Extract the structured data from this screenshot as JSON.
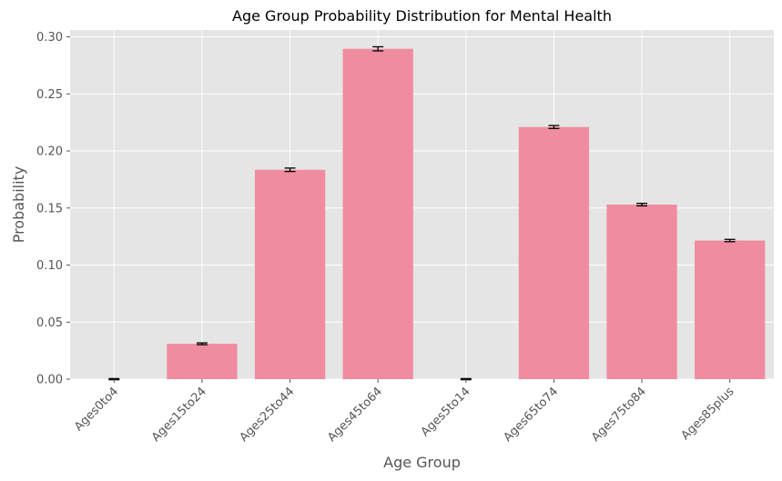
{
  "chart_data": {
    "type": "bar",
    "title": "Age Group Probability Distribution for Mental Health",
    "xlabel": "Age Group",
    "ylabel": "Probability",
    "categories": [
      "Ages0to4",
      "Ages15to24",
      "Ages25to44",
      "Ages45to64",
      "Ages5to14",
      "Ages65to74",
      "Ages75to84",
      "Ages85plus"
    ],
    "values": [
      0.0,
      0.031,
      0.1835,
      0.2895,
      0.0,
      0.221,
      0.153,
      0.1215
    ],
    "errors": [
      0.0005,
      0.0008,
      0.0015,
      0.0018,
      0.0005,
      0.0013,
      0.0011,
      0.001
    ],
    "ylim": [
      0,
      0.3
    ],
    "yticks": [
      0.0,
      0.05,
      0.1,
      0.15,
      0.2,
      0.25,
      0.3
    ],
    "ytick_labels": [
      "0.00",
      "0.05",
      "0.10",
      "0.15",
      "0.20",
      "0.25",
      "0.30"
    ],
    "grid": true,
    "colors": {
      "bar": "#f08ca0",
      "plot_background": "#e5e5e5",
      "grid": "#ffffff",
      "error_bar": "#000000"
    }
  }
}
